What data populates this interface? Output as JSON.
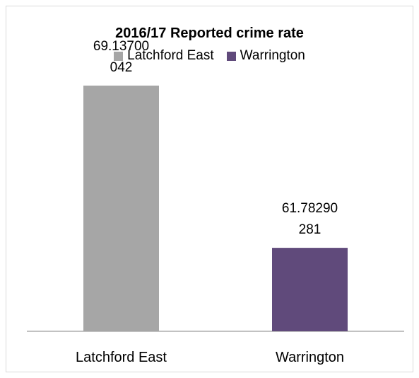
{
  "chart_data": {
    "type": "bar",
    "title": "2016/17 Reported crime rate",
    "categories": [
      "Latchford East",
      "Warrington"
    ],
    "series": [
      {
        "name": "Latchford East",
        "values": [
          69.13700042,
          null
        ],
        "color": "#a6a6a6",
        "data_label_lines": [
          "69.13700",
          "042"
        ]
      },
      {
        "name": "Warrington",
        "values": [
          null,
          61.78290281
        ],
        "color": "#604a7b",
        "data_label_lines": [
          "61.78290",
          "281"
        ]
      }
    ],
    "xlabel": "",
    "ylabel": "",
    "ylim": [
      58,
      70
    ],
    "grid": false,
    "legend_position": "top"
  }
}
